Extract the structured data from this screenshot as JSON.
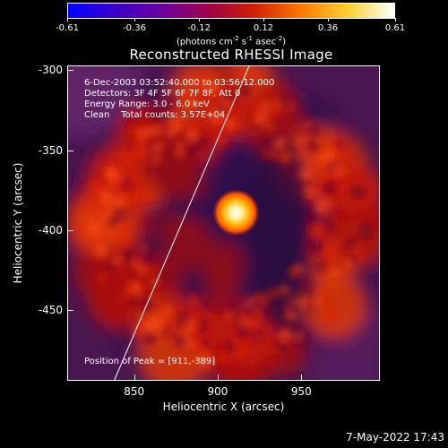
{
  "colorbar": {
    "ticks": [
      "-0.61",
      "-0.36",
      "-0.12",
      "0.12",
      "0.36",
      "0.61"
    ],
    "tick_values": [
      -0.61,
      -0.36,
      -0.12,
      0.12,
      0.36,
      0.61
    ],
    "range": [
      -0.61,
      0.61
    ],
    "colors": [
      "#0000ff",
      "#3a00c8",
      "#6a00a0",
      "#a0004a",
      "#d02000",
      "#ff7800",
      "#ffd030",
      "#ffffff"
    ]
  },
  "units_label": {
    "prefix": "(photons cm",
    "exp1": "-2",
    "mid": " s",
    "exp2": "-1",
    "mid2": " asec",
    "exp3": "-2",
    "suffix": ")"
  },
  "title": "Reconstructed RHESSI Image",
  "annotation": {
    "time": "6-Dec-2003 03:52:40.000 to 03:56:12.000",
    "detectors": "Detectors: 3F 4F 5F 6F 7F 8F, Att 0",
    "energy": "Energy Range: 3.0 - 6.0 keV",
    "clean": "Clean    Total counts: 3.57E+04"
  },
  "peak_label": "Position of Peak = [911,-389]",
  "axes": {
    "xlabel": "Heliocentric X (arcsec)",
    "ylabel": "Heliocentric Y (arcsec)",
    "xticks": [
      "850",
      "900",
      "950"
    ],
    "yticks": [
      "-300",
      "-350",
      "-400",
      "-450"
    ],
    "xlim": [
      810,
      997
    ],
    "ylim": [
      -297,
      -494
    ],
    "xtick_values": [
      850,
      900,
      950
    ],
    "ytick_values": [
      -300,
      -350,
      -400,
      -450
    ]
  },
  "peak": {
    "x": 911,
    "y": -389
  },
  "limb": {
    "x_top": 919,
    "x_bottom": 838
  },
  "timestamp": "7-May-2022 17:43"
}
